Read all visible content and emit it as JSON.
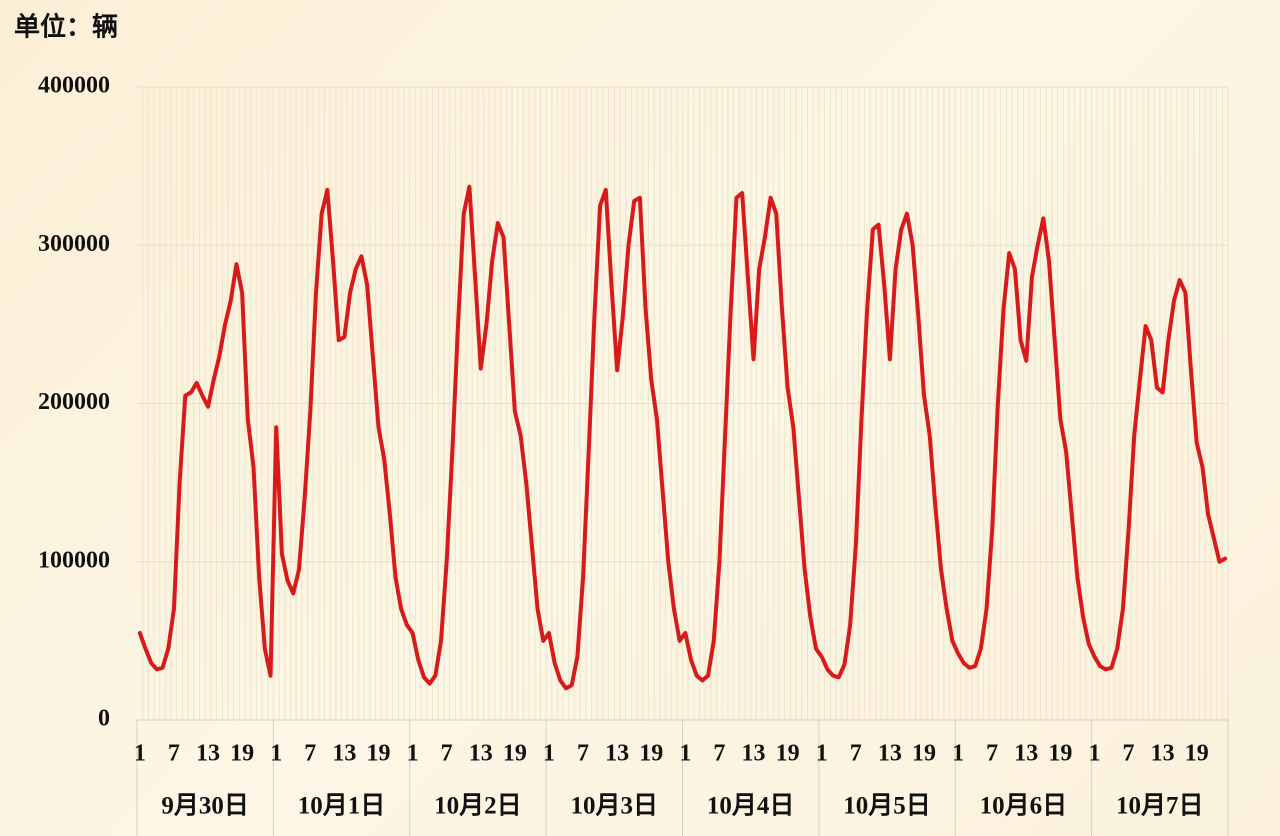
{
  "chart_data": {
    "type": "line",
    "y_label": "单位：辆",
    "categories": [
      "1",
      null,
      null,
      null,
      null,
      null,
      "7",
      null,
      null,
      null,
      null,
      null,
      "13",
      null,
      null,
      null,
      null,
      null,
      "19",
      null,
      null,
      null,
      null,
      null,
      "1",
      null,
      null,
      null,
      null,
      null,
      "7",
      null,
      null,
      null,
      null,
      null,
      "13",
      null,
      null,
      null,
      null,
      null,
      "19",
      null,
      null,
      null,
      null,
      null,
      "1",
      null,
      null,
      null,
      null,
      null,
      "7",
      null,
      null,
      null,
      null,
      null,
      "13",
      null,
      null,
      null,
      null,
      null,
      "19",
      null,
      null,
      null,
      null,
      null,
      "1",
      null,
      null,
      null,
      null,
      null,
      "7",
      null,
      null,
      null,
      null,
      null,
      "13",
      null,
      null,
      null,
      null,
      null,
      "19",
      null,
      null,
      null,
      null,
      null,
      "1",
      null,
      null,
      null,
      null,
      null,
      "7",
      null,
      null,
      null,
      null,
      null,
      "13",
      null,
      null,
      null,
      null,
      null,
      "19",
      null,
      null,
      null,
      null,
      null,
      "1",
      null,
      null,
      null,
      null,
      null,
      "7",
      null,
      null,
      null,
      null,
      null,
      "13",
      null,
      null,
      null,
      null,
      null,
      "19",
      null,
      null,
      null,
      null,
      null,
      "1",
      null,
      null,
      null,
      null,
      null,
      "7",
      null,
      null,
      null,
      null,
      null,
      "13",
      null,
      null,
      null,
      null,
      null,
      "19",
      null,
      null,
      null,
      null,
      null,
      "1",
      null,
      null,
      null,
      null,
      null,
      "7",
      null,
      null,
      null,
      null,
      null,
      "13",
      null,
      null,
      null,
      null,
      null,
      "19",
      null,
      null,
      null,
      null,
      null
    ],
    "groups": [
      "9月30日",
      "10月1日",
      "10月2日",
      "10月3日",
      "10月4日",
      "10月5日",
      "10月6日",
      "10月7日"
    ],
    "color": "#d81a1a",
    "values": [
      55000,
      45000,
      36000,
      32000,
      33000,
      45000,
      70000,
      150000,
      205000,
      207000,
      213000,
      205000,
      198000,
      215000,
      230000,
      250000,
      265000,
      288000,
      270000,
      190000,
      160000,
      90000,
      45000,
      28000,
      185000,
      105000,
      88000,
      80000,
      95000,
      140000,
      195000,
      270000,
      320000,
      335000,
      290000,
      240000,
      242000,
      270000,
      285000,
      293000,
      275000,
      230000,
      185000,
      165000,
      130000,
      90000,
      70000,
      60000,
      55000,
      38000,
      27000,
      23000,
      28000,
      50000,
      100000,
      170000,
      250000,
      320000,
      337000,
      280000,
      222000,
      250000,
      290000,
      314000,
      305000,
      250000,
      195000,
      180000,
      150000,
      110000,
      70000,
      50000,
      55000,
      36000,
      25000,
      20000,
      22000,
      40000,
      90000,
      170000,
      255000,
      325000,
      335000,
      275000,
      221000,
      255000,
      300000,
      328000,
      330000,
      260000,
      215000,
      190000,
      145000,
      100000,
      70000,
      50000,
      55000,
      38000,
      28000,
      25000,
      28000,
      50000,
      100000,
      180000,
      260000,
      330000,
      333000,
      280000,
      228000,
      285000,
      305000,
      330000,
      320000,
      260000,
      210000,
      185000,
      140000,
      95000,
      65000,
      45000,
      40000,
      32000,
      28000,
      27000,
      35000,
      60000,
      110000,
      190000,
      260000,
      310000,
      313000,
      275000,
      228000,
      285000,
      310000,
      320000,
      300000,
      255000,
      205000,
      180000,
      135000,
      95000,
      70000,
      50000,
      42000,
      36000,
      33000,
      34000,
      45000,
      70000,
      120000,
      200000,
      260000,
      295000,
      285000,
      240000,
      227000,
      280000,
      300000,
      317000,
      290000,
      240000,
      190000,
      170000,
      130000,
      90000,
      65000,
      48000,
      40000,
      34000,
      32000,
      33000,
      45000,
      70000,
      120000,
      180000,
      215000,
      249000,
      240000,
      210000,
      207000,
      240000,
      265000,
      278000,
      270000,
      220000,
      175000,
      160000,
      130000,
      115000,
      100000,
      102000
    ],
    "ylim": [
      0,
      400000
    ],
    "yticks": [
      0,
      100000,
      200000,
      300000,
      400000
    ],
    "grid": true
  }
}
